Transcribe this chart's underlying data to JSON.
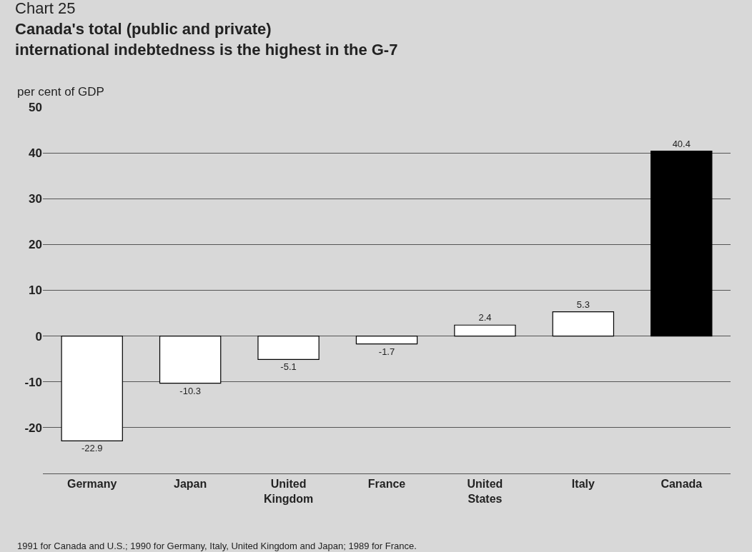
{
  "chart_data": {
    "type": "bar",
    "title": "Chart 25",
    "subtitle": "Canada's total (public and private)\ninternational indebtedness is the highest in the G-7",
    "ylabel": "per cent of GDP",
    "categories": [
      "Germany",
      "Japan",
      "United\nKingdom",
      "France",
      "United\nStates",
      "Italy",
      "Canada"
    ],
    "values": [
      -22.9,
      -10.3,
      -5.1,
      -1.7,
      2.4,
      5.3,
      40.4
    ],
    "colors": [
      "#ffffff",
      "#ffffff",
      "#ffffff",
      "#ffffff",
      "#ffffff",
      "#ffffff",
      "#000000"
    ],
    "data_labels": true,
    "ylim": [
      -30,
      50
    ],
    "yticks": [
      -20,
      -10,
      0,
      10,
      20,
      30,
      40,
      50
    ],
    "grid": "y",
    "annotations": [
      "1991 for Canada and U.S.; 1990 for Germany, Italy, United Kingdom and Japan; 1989 for France."
    ]
  }
}
